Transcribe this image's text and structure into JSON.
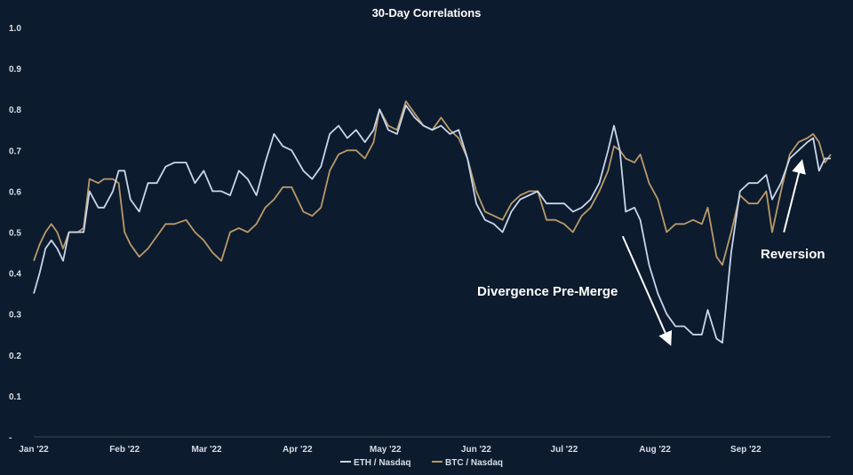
{
  "chart_data": {
    "type": "line",
    "title": "30-Day Correlations",
    "xlabel": "",
    "ylabel": "",
    "ylim": [
      0,
      1.0
    ],
    "yticks": [
      "-",
      "0.1",
      "0.2",
      "0.3",
      "0.4",
      "0.5",
      "0.6",
      "0.7",
      "0.8",
      "0.9",
      "1.0"
    ],
    "x_start": "2022-01-01",
    "x_end": "2022-09-30",
    "xticks": [
      {
        "date": "2022-01-01",
        "label": "Jan '22"
      },
      {
        "date": "2022-02-01",
        "label": "Feb '22"
      },
      {
        "date": "2022-03-01",
        "label": "Mar '22"
      },
      {
        "date": "2022-04-01",
        "label": "Apr '22"
      },
      {
        "date": "2022-05-01",
        "label": "May '22"
      },
      {
        "date": "2022-06-01",
        "label": "Jun '22"
      },
      {
        "date": "2022-07-01",
        "label": "Jul '22"
      },
      {
        "date": "2022-08-01",
        "label": "Aug '22"
      },
      {
        "date": "2022-09-01",
        "label": "Sep '22"
      }
    ],
    "grid": false,
    "legend": "bottom",
    "series": [
      {
        "name": "ETH / Nasdaq",
        "color": "#c9d6ea",
        "points": [
          [
            "2022-01-01",
            0.35
          ],
          [
            "2022-01-03",
            0.4
          ],
          [
            "2022-01-05",
            0.46
          ],
          [
            "2022-01-07",
            0.48
          ],
          [
            "2022-01-09",
            0.46
          ],
          [
            "2022-01-11",
            0.43
          ],
          [
            "2022-01-13",
            0.5
          ],
          [
            "2022-01-16",
            0.5
          ],
          [
            "2022-01-18",
            0.5
          ],
          [
            "2022-01-20",
            0.6
          ],
          [
            "2022-01-23",
            0.56
          ],
          [
            "2022-01-25",
            0.56
          ],
          [
            "2022-01-28",
            0.6
          ],
          [
            "2022-01-30",
            0.65
          ],
          [
            "2022-02-01",
            0.65
          ],
          [
            "2022-02-03",
            0.58
          ],
          [
            "2022-02-06",
            0.55
          ],
          [
            "2022-02-09",
            0.62
          ],
          [
            "2022-02-12",
            0.62
          ],
          [
            "2022-02-15",
            0.66
          ],
          [
            "2022-02-18",
            0.67
          ],
          [
            "2022-02-22",
            0.67
          ],
          [
            "2022-02-25",
            0.62
          ],
          [
            "2022-02-28",
            0.65
          ],
          [
            "2022-03-03",
            0.6
          ],
          [
            "2022-03-06",
            0.6
          ],
          [
            "2022-03-09",
            0.59
          ],
          [
            "2022-03-12",
            0.65
          ],
          [
            "2022-03-15",
            0.63
          ],
          [
            "2022-03-18",
            0.59
          ],
          [
            "2022-03-21",
            0.67
          ],
          [
            "2022-03-24",
            0.74
          ],
          [
            "2022-03-27",
            0.71
          ],
          [
            "2022-03-30",
            0.7
          ],
          [
            "2022-04-03",
            0.65
          ],
          [
            "2022-04-06",
            0.63
          ],
          [
            "2022-04-09",
            0.66
          ],
          [
            "2022-04-12",
            0.74
          ],
          [
            "2022-04-15",
            0.76
          ],
          [
            "2022-04-18",
            0.73
          ],
          [
            "2022-04-21",
            0.75
          ],
          [
            "2022-04-24",
            0.72
          ],
          [
            "2022-04-27",
            0.75
          ],
          [
            "2022-04-29",
            0.8
          ],
          [
            "2022-05-02",
            0.75
          ],
          [
            "2022-05-05",
            0.74
          ],
          [
            "2022-05-08",
            0.81
          ],
          [
            "2022-05-11",
            0.78
          ],
          [
            "2022-05-14",
            0.76
          ],
          [
            "2022-05-17",
            0.75
          ],
          [
            "2022-05-20",
            0.76
          ],
          [
            "2022-05-23",
            0.74
          ],
          [
            "2022-05-26",
            0.75
          ],
          [
            "2022-05-29",
            0.68
          ],
          [
            "2022-06-01",
            0.57
          ],
          [
            "2022-06-04",
            0.53
          ],
          [
            "2022-06-07",
            0.52
          ],
          [
            "2022-06-10",
            0.5
          ],
          [
            "2022-06-13",
            0.55
          ],
          [
            "2022-06-16",
            0.58
          ],
          [
            "2022-06-19",
            0.59
          ],
          [
            "2022-06-22",
            0.6
          ],
          [
            "2022-06-25",
            0.57
          ],
          [
            "2022-06-28",
            0.57
          ],
          [
            "2022-07-01",
            0.57
          ],
          [
            "2022-07-04",
            0.55
          ],
          [
            "2022-07-07",
            0.56
          ],
          [
            "2022-07-10",
            0.58
          ],
          [
            "2022-07-13",
            0.62
          ],
          [
            "2022-07-16",
            0.7
          ],
          [
            "2022-07-18",
            0.76
          ],
          [
            "2022-07-20",
            0.7
          ],
          [
            "2022-07-22",
            0.55
          ],
          [
            "2022-07-25",
            0.56
          ],
          [
            "2022-07-27",
            0.53
          ],
          [
            "2022-07-30",
            0.42
          ],
          [
            "2022-08-02",
            0.35
          ],
          [
            "2022-08-05",
            0.3
          ],
          [
            "2022-08-08",
            0.27
          ],
          [
            "2022-08-11",
            0.27
          ],
          [
            "2022-08-14",
            0.25
          ],
          [
            "2022-08-17",
            0.25
          ],
          [
            "2022-08-19",
            0.31
          ],
          [
            "2022-08-22",
            0.24
          ],
          [
            "2022-08-24",
            0.23
          ],
          [
            "2022-08-27",
            0.45
          ],
          [
            "2022-08-30",
            0.6
          ],
          [
            "2022-09-02",
            0.62
          ],
          [
            "2022-09-05",
            0.62
          ],
          [
            "2022-09-08",
            0.64
          ],
          [
            "2022-09-10",
            0.58
          ],
          [
            "2022-09-13",
            0.62
          ],
          [
            "2022-09-16",
            0.68
          ],
          [
            "2022-09-19",
            0.7
          ],
          [
            "2022-09-22",
            0.72
          ],
          [
            "2022-09-24",
            0.73
          ],
          [
            "2022-09-26",
            0.65
          ],
          [
            "2022-09-28",
            0.68
          ],
          [
            "2022-09-30",
            0.68
          ]
        ]
      },
      {
        "name": "BTC / Nasdaq",
        "color": "#b89a6a",
        "points": [
          [
            "2022-01-01",
            0.43
          ],
          [
            "2022-01-03",
            0.47
          ],
          [
            "2022-01-05",
            0.5
          ],
          [
            "2022-01-07",
            0.52
          ],
          [
            "2022-01-09",
            0.5
          ],
          [
            "2022-01-11",
            0.46
          ],
          [
            "2022-01-13",
            0.5
          ],
          [
            "2022-01-16",
            0.5
          ],
          [
            "2022-01-18",
            0.51
          ],
          [
            "2022-01-20",
            0.63
          ],
          [
            "2022-01-23",
            0.62
          ],
          [
            "2022-01-25",
            0.63
          ],
          [
            "2022-01-28",
            0.63
          ],
          [
            "2022-01-30",
            0.62
          ],
          [
            "2022-02-01",
            0.5
          ],
          [
            "2022-02-03",
            0.47
          ],
          [
            "2022-02-06",
            0.44
          ],
          [
            "2022-02-09",
            0.46
          ],
          [
            "2022-02-12",
            0.49
          ],
          [
            "2022-02-15",
            0.52
          ],
          [
            "2022-02-18",
            0.52
          ],
          [
            "2022-02-22",
            0.53
          ],
          [
            "2022-02-25",
            0.5
          ],
          [
            "2022-02-28",
            0.48
          ],
          [
            "2022-03-03",
            0.45
          ],
          [
            "2022-03-06",
            0.43
          ],
          [
            "2022-03-09",
            0.5
          ],
          [
            "2022-03-12",
            0.51
          ],
          [
            "2022-03-15",
            0.5
          ],
          [
            "2022-03-18",
            0.52
          ],
          [
            "2022-03-21",
            0.56
          ],
          [
            "2022-03-24",
            0.58
          ],
          [
            "2022-03-27",
            0.61
          ],
          [
            "2022-03-30",
            0.61
          ],
          [
            "2022-04-03",
            0.55
          ],
          [
            "2022-04-06",
            0.54
          ],
          [
            "2022-04-09",
            0.56
          ],
          [
            "2022-04-12",
            0.65
          ],
          [
            "2022-04-15",
            0.69
          ],
          [
            "2022-04-18",
            0.7
          ],
          [
            "2022-04-21",
            0.7
          ],
          [
            "2022-04-24",
            0.68
          ],
          [
            "2022-04-27",
            0.72
          ],
          [
            "2022-04-29",
            0.8
          ],
          [
            "2022-05-02",
            0.76
          ],
          [
            "2022-05-05",
            0.75
          ],
          [
            "2022-05-08",
            0.82
          ],
          [
            "2022-05-11",
            0.79
          ],
          [
            "2022-05-14",
            0.76
          ],
          [
            "2022-05-17",
            0.75
          ],
          [
            "2022-05-20",
            0.78
          ],
          [
            "2022-05-23",
            0.75
          ],
          [
            "2022-05-26",
            0.73
          ],
          [
            "2022-05-29",
            0.68
          ],
          [
            "2022-06-01",
            0.6
          ],
          [
            "2022-06-04",
            0.55
          ],
          [
            "2022-06-07",
            0.54
          ],
          [
            "2022-06-10",
            0.53
          ],
          [
            "2022-06-13",
            0.57
          ],
          [
            "2022-06-16",
            0.59
          ],
          [
            "2022-06-19",
            0.6
          ],
          [
            "2022-06-22",
            0.6
          ],
          [
            "2022-06-25",
            0.53
          ],
          [
            "2022-06-28",
            0.53
          ],
          [
            "2022-07-01",
            0.52
          ],
          [
            "2022-07-04",
            0.5
          ],
          [
            "2022-07-07",
            0.54
          ],
          [
            "2022-07-10",
            0.56
          ],
          [
            "2022-07-13",
            0.6
          ],
          [
            "2022-07-16",
            0.65
          ],
          [
            "2022-07-18",
            0.71
          ],
          [
            "2022-07-20",
            0.7
          ],
          [
            "2022-07-22",
            0.68
          ],
          [
            "2022-07-25",
            0.67
          ],
          [
            "2022-07-27",
            0.69
          ],
          [
            "2022-07-30",
            0.62
          ],
          [
            "2022-08-02",
            0.58
          ],
          [
            "2022-08-05",
            0.5
          ],
          [
            "2022-08-08",
            0.52
          ],
          [
            "2022-08-11",
            0.52
          ],
          [
            "2022-08-14",
            0.53
          ],
          [
            "2022-08-17",
            0.52
          ],
          [
            "2022-08-19",
            0.56
          ],
          [
            "2022-08-22",
            0.44
          ],
          [
            "2022-08-24",
            0.42
          ],
          [
            "2022-08-27",
            0.5
          ],
          [
            "2022-08-30",
            0.59
          ],
          [
            "2022-09-02",
            0.57
          ],
          [
            "2022-09-05",
            0.57
          ],
          [
            "2022-09-08",
            0.6
          ],
          [
            "2022-09-10",
            0.5
          ],
          [
            "2022-09-13",
            0.6
          ],
          [
            "2022-09-16",
            0.69
          ],
          [
            "2022-09-19",
            0.72
          ],
          [
            "2022-09-22",
            0.73
          ],
          [
            "2022-09-24",
            0.74
          ],
          [
            "2022-09-26",
            0.72
          ],
          [
            "2022-09-28",
            0.67
          ],
          [
            "2022-09-30",
            0.69
          ]
        ]
      }
    ],
    "annotations": [
      {
        "text": "Divergence Pre-Merge",
        "arrow_from": [
          "2022-07-21",
          0.49
        ],
        "arrow_to": [
          "2022-08-06",
          0.23
        ]
      },
      {
        "text": "Reversion",
        "arrow_from": [
          "2022-09-14",
          0.5
        ],
        "arrow_to": [
          "2022-09-20",
          0.67
        ]
      }
    ]
  }
}
